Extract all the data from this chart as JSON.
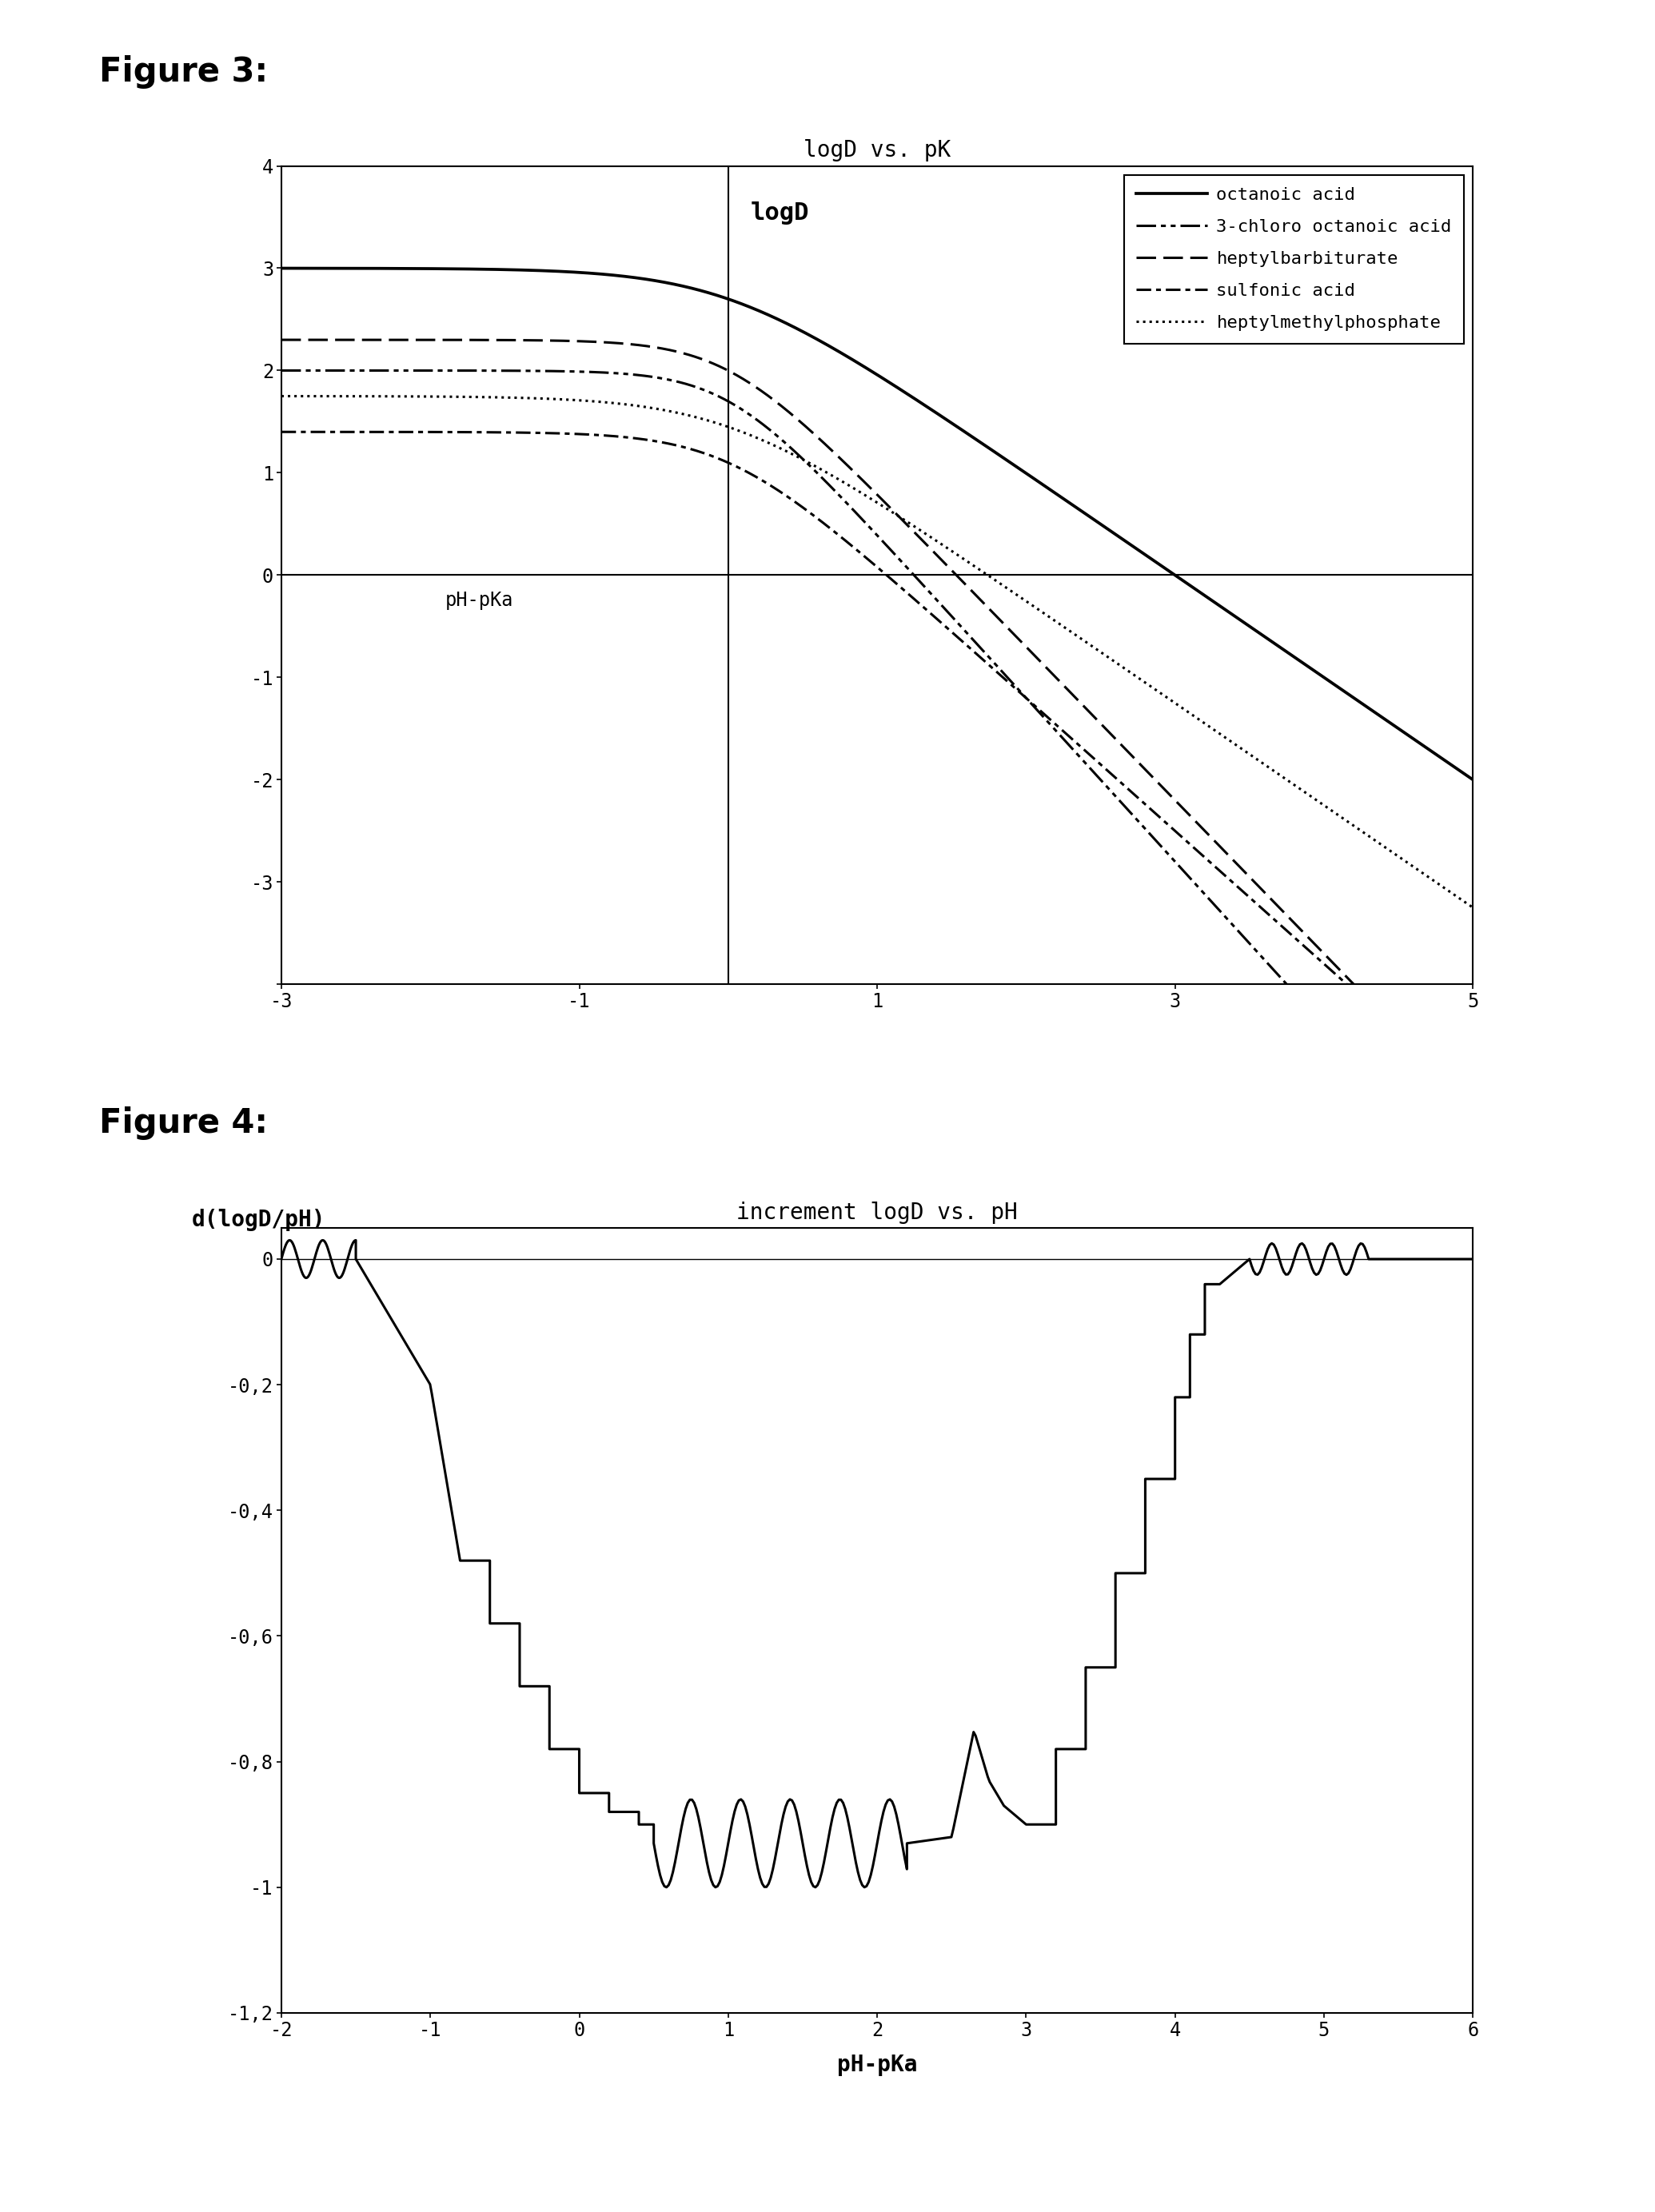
{
  "fig3_title": "logD vs. pK",
  "fig3_logP_values": [
    3.0,
    2.0,
    2.3,
    1.4,
    1.75
  ],
  "fig3_legend": [
    "octanoic acid",
    "3-chloro octanoic acid",
    "heptylbarbiturate",
    "sulfonic acid",
    "heptylmethylphosphate"
  ],
  "fig4_title": "increment logD vs. pH",
  "fig4_xlabel": "pH-pKa",
  "fig4_ylabel": "d(logD/pH)",
  "background_color": "#ffffff"
}
